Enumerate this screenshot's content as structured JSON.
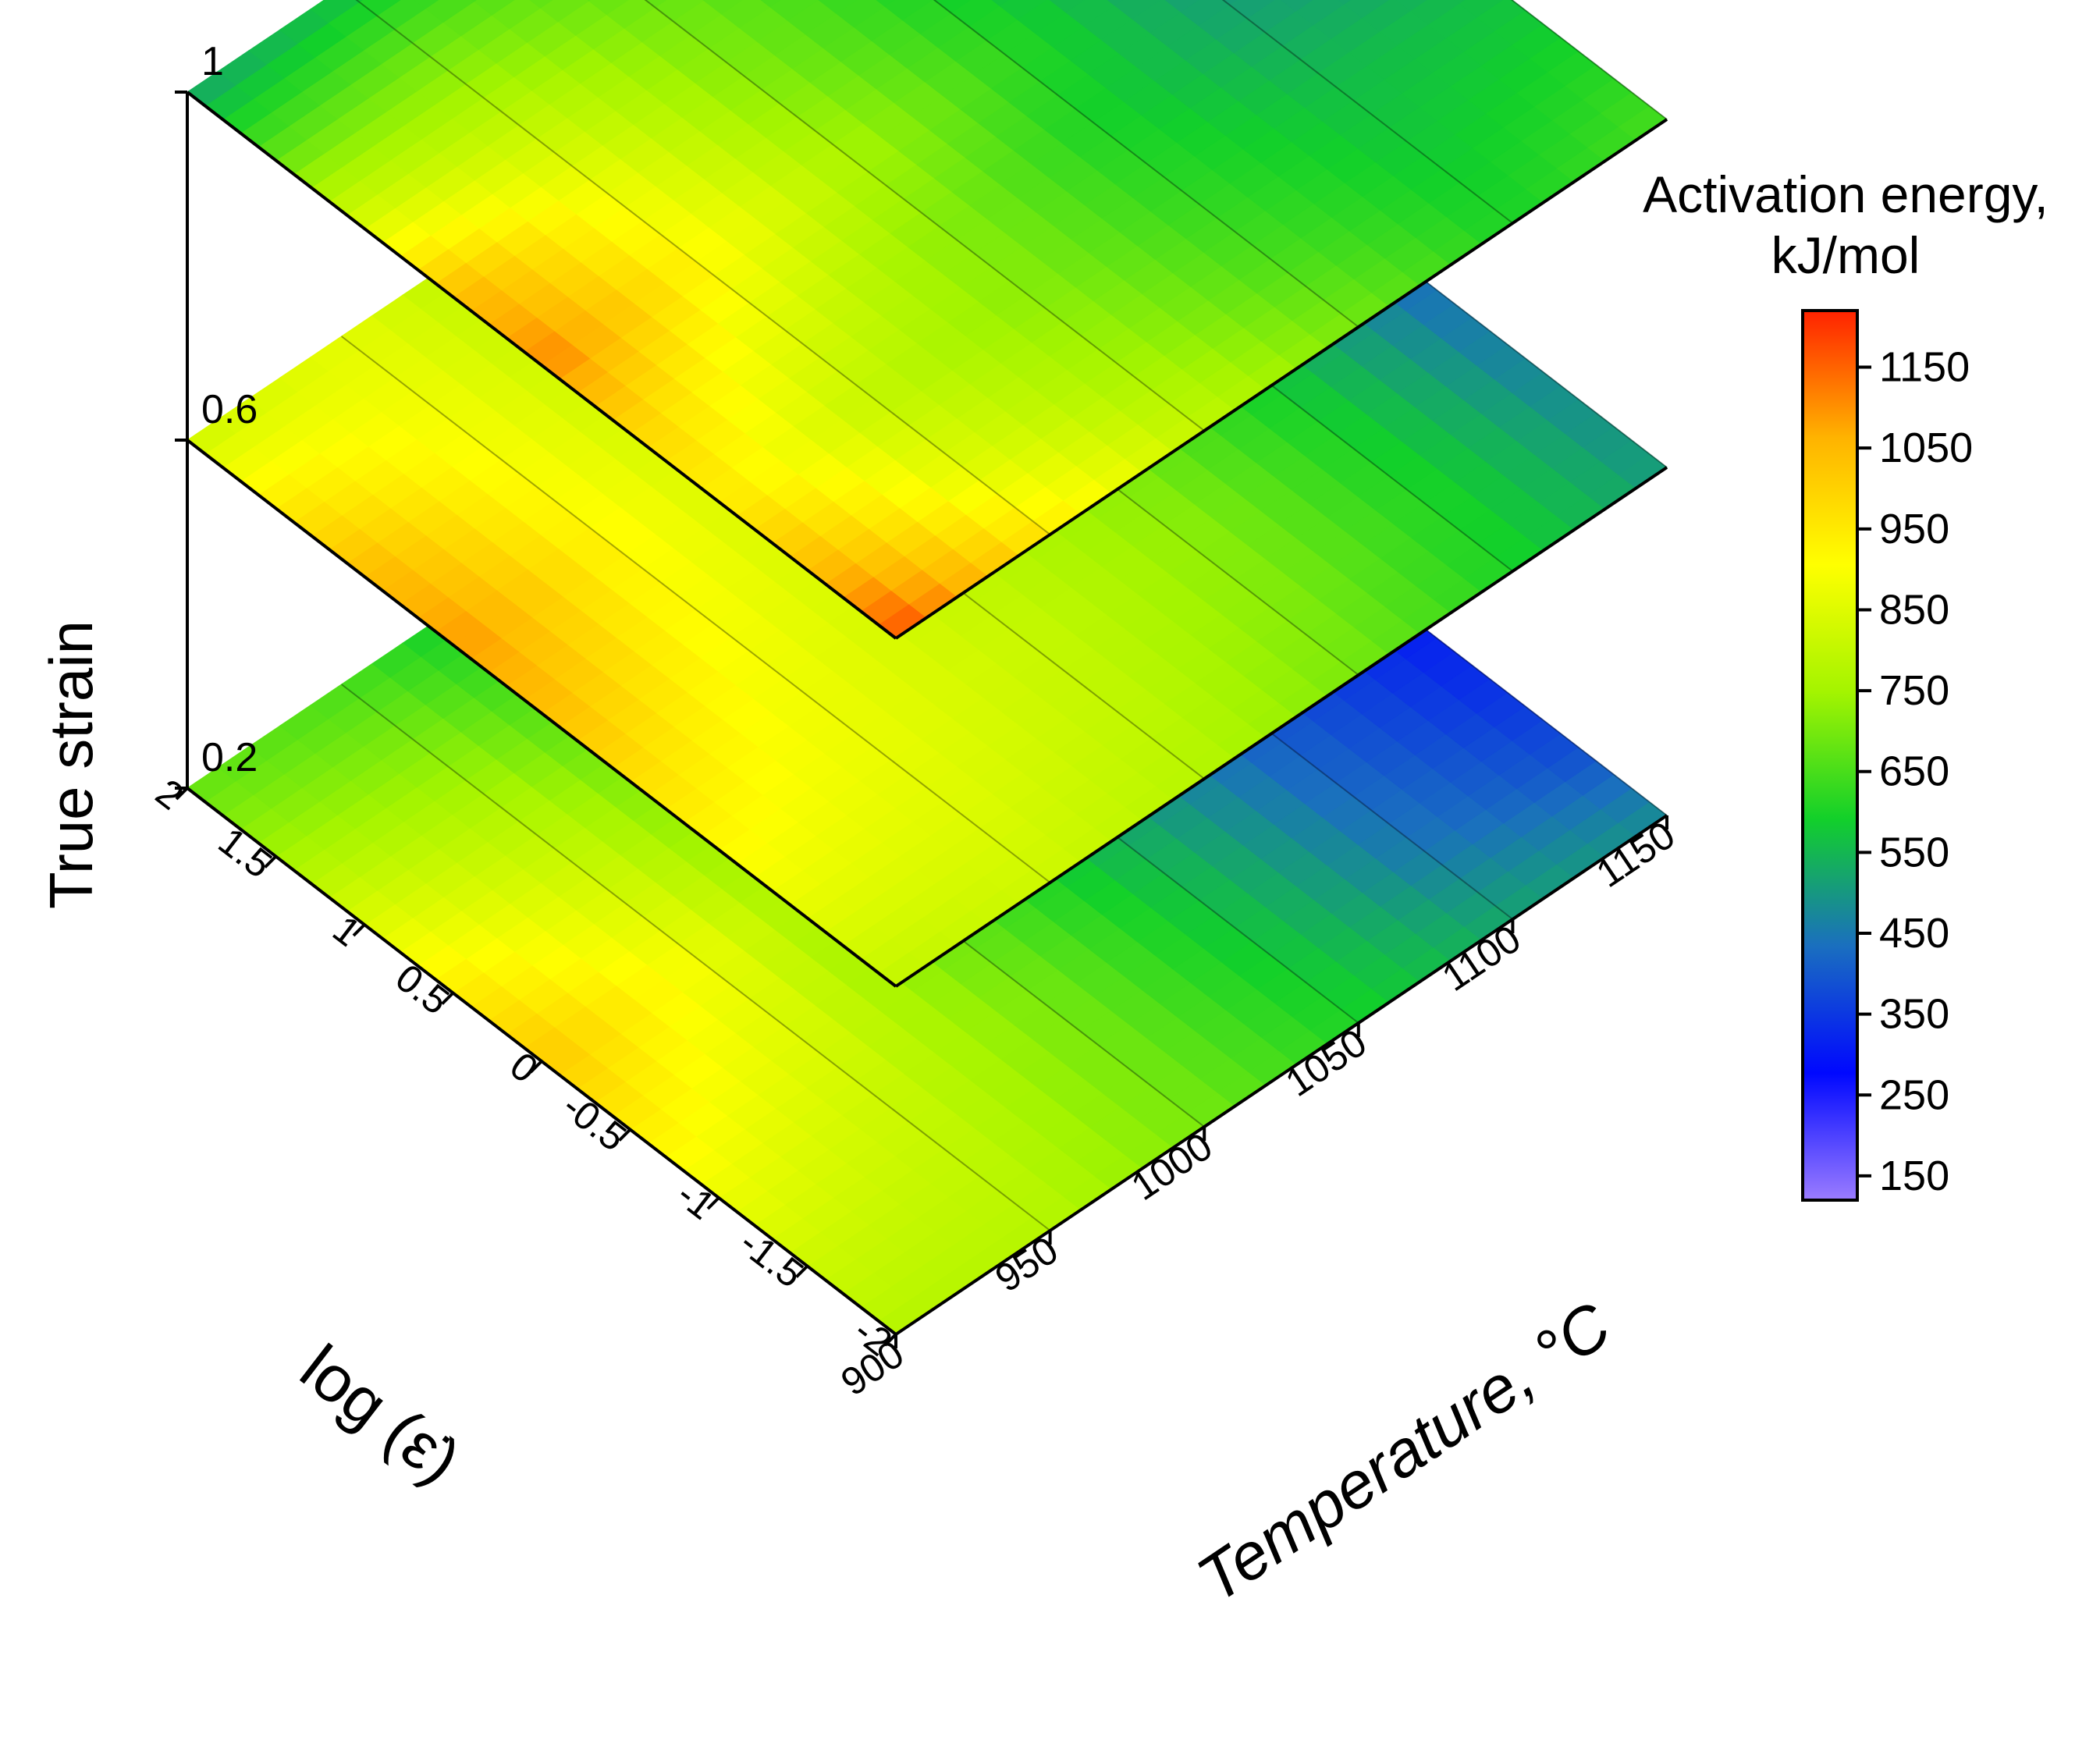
{
  "chart_data": {
    "type": "heatmap",
    "chart_variant": "stacked 3D contour slices",
    "title": "",
    "x_axis": {
      "label": "Temperature, °C",
      "range": [
        900,
        1150
      ],
      "ticks": [
        "900",
        "950",
        "1000",
        "1050",
        "1100",
        "1150"
      ]
    },
    "y_axis": {
      "label": "log (ε̇)",
      "range": [
        -2,
        2
      ],
      "ticks": [
        "-2",
        "-1.5",
        "-1",
        "-0.5",
        "0",
        "0.5",
        "1",
        "1.5",
        "2"
      ]
    },
    "z_axis": {
      "label": "True strain",
      "ticks": [
        "0.2",
        "0.6",
        "1"
      ]
    },
    "colorbar": {
      "label_line1": "Activation energy,",
      "label_line2": "kJ/mol",
      "range": [
        120,
        1220
      ],
      "ticks": [
        "150",
        "250",
        "350",
        "450",
        "550",
        "650",
        "750",
        "850",
        "950",
        "1050",
        "1150"
      ],
      "colors": [
        "#9b7cff",
        "#0008ff",
        "#1a6fbf",
        "#12d02a",
        "#a4f400",
        "#ffff00",
        "#ffb300",
        "#ff2200"
      ]
    },
    "temperatures": [
      900,
      950,
      1000,
      1050,
      1100,
      1150
    ],
    "log_strain_rates": [
      -2,
      -1.5,
      -1,
      -0.5,
      0,
      0.5,
      1,
      1.5,
      2
    ],
    "slices": [
      {
        "strain": 0.2,
        "q": [
          [
            780,
            780,
            700,
            600,
            520,
            480
          ],
          [
            820,
            800,
            700,
            580,
            450,
            380
          ],
          [
            880,
            820,
            700,
            560,
            420,
            330
          ],
          [
            950,
            850,
            680,
            530,
            400,
            300
          ],
          [
            1020,
            880,
            670,
            510,
            380,
            260
          ],
          [
            950,
            830,
            660,
            500,
            380,
            250
          ],
          [
            850,
            780,
            640,
            470,
            360,
            220
          ],
          [
            750,
            720,
            600,
            420,
            320,
            180
          ],
          [
            680,
            650,
            550,
            400,
            300,
            170
          ]
        ]
      },
      {
        "strain": 0.6,
        "q": [
          [
            800,
            820,
            780,
            700,
            600,
            500
          ],
          [
            860,
            850,
            800,
            720,
            610,
            480
          ],
          [
            920,
            870,
            810,
            730,
            600,
            450
          ],
          [
            980,
            880,
            800,
            720,
            580,
            420
          ],
          [
            1050,
            900,
            800,
            700,
            550,
            380
          ],
          [
            1100,
            920,
            790,
            680,
            520,
            340
          ],
          [
            1050,
            900,
            780,
            660,
            490,
            300
          ],
          [
            950,
            880,
            770,
            640,
            460,
            260
          ],
          [
            820,
            860,
            760,
            620,
            430,
            220
          ]
        ]
      },
      {
        "strain": 1,
        "q": [
          [
            1180,
            950,
            800,
            700,
            600,
            650
          ],
          [
            1050,
            850,
            750,
            650,
            580,
            600
          ],
          [
            950,
            800,
            720,
            620,
            560,
            560
          ],
          [
            1000,
            850,
            720,
            600,
            520,
            500
          ],
          [
            1120,
            920,
            760,
            620,
            500,
            440
          ],
          [
            1050,
            880,
            720,
            600,
            480,
            400
          ],
          [
            850,
            800,
            700,
            600,
            460,
            370
          ],
          [
            680,
            700,
            660,
            580,
            440,
            340
          ],
          [
            520,
            560,
            600,
            550,
            420,
            310
          ]
        ]
      }
    ]
  }
}
